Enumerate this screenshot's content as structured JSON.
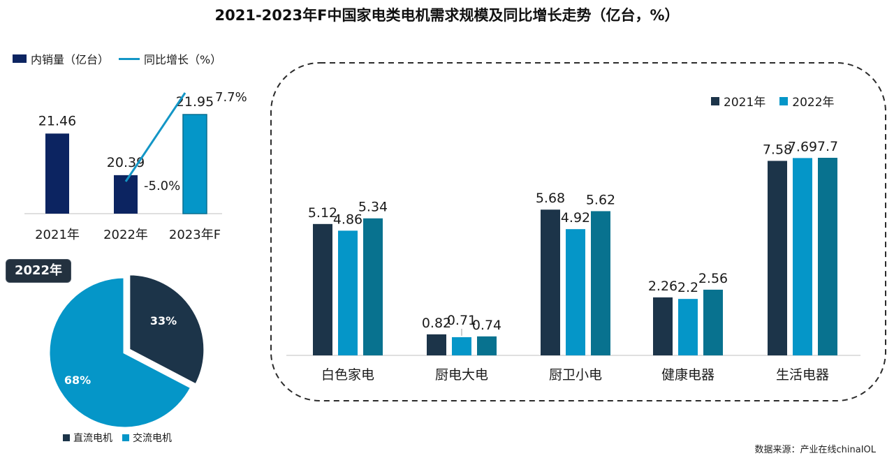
{
  "title": "2021-2023年F中国家电类电机需求规模及同比增长走势（亿台，%）",
  "source": "数据来源：产业在线chinaIOL",
  "colors": {
    "navy": "#0c2461",
    "dark": "#1c3449",
    "blue": "#0596c8",
    "teal": "#08728f",
    "line": "#1396c6"
  },
  "chart_data": [
    {
      "type": "bar",
      "categories": [
        "2021年",
        "2022年",
        "2023年F"
      ],
      "series": [
        {
          "name": "内销量（亿台）",
          "kind": "bar",
          "values": [
            21.46,
            20.39,
            21.95
          ],
          "labels": [
            "21.46",
            "20.39",
            "21.95"
          ]
        },
        {
          "name": "同比增长（%）",
          "kind": "line",
          "values": [
            null,
            -5.0,
            7.7
          ],
          "labels": [
            "",
            "-5.0%",
            "7.7%"
          ]
        }
      ],
      "legend": "top-left"
    },
    {
      "type": "pie",
      "title": "2022年",
      "labels": [
        "直流电机",
        "交流电机"
      ],
      "values": [
        33,
        68
      ],
      "value_labels": [
        "33%",
        "68%"
      ],
      "legend": "bottom"
    },
    {
      "type": "bar",
      "categories": [
        "白色家电",
        "厨电大电",
        "厨卫小电",
        "健康电器",
        "生活电器"
      ],
      "series": [
        {
          "name": "2021年",
          "values": [
            5.12,
            0.82,
            5.68,
            2.26,
            7.58
          ],
          "labels": [
            "5.12",
            "0.82",
            "5.68",
            "2.26",
            "7.58"
          ]
        },
        {
          "name": "2022年",
          "values": [
            4.86,
            0.71,
            4.92,
            2.2,
            7.69
          ],
          "labels": [
            "4.86",
            "0.71",
            "4.92",
            "2.2",
            "7.69"
          ]
        },
        {
          "name": "",
          "values": [
            5.34,
            0.74,
            5.62,
            2.56,
            7.7
          ],
          "labels": [
            "5.34",
            "0.74",
            "5.62",
            "2.56",
            "7.7"
          ]
        }
      ],
      "legend": "top-right"
    }
  ]
}
